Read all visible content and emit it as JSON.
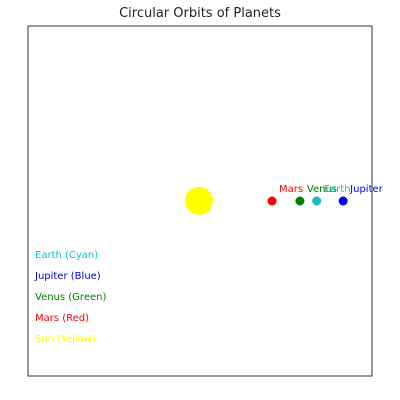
{
  "chart_data": {
    "type": "scatter",
    "title": "Circular Orbits of Planets",
    "xlabel": "",
    "ylabel": "",
    "axis_ticks": "hidden",
    "grid": false,
    "sun": {
      "label": "",
      "x": 0,
      "y": 0,
      "color": "#ffff00"
    },
    "planets": [
      {
        "name": "Mars",
        "x": 1.52,
        "y": 0,
        "color": "#ff0000"
      },
      {
        "name": "Venus",
        "x": 2.1,
        "y": 0,
        "color": "#008000"
      },
      {
        "name": "Earth",
        "x": 2.45,
        "y": 0,
        "color": "#17becf"
      },
      {
        "name": "Jupiter",
        "x": 3.0,
        "y": 0,
        "color": "#0000ff"
      }
    ],
    "legend": {
      "placement": "lower-left",
      "entries": [
        {
          "label": "Earth (Cyan)",
          "color": "#17becf"
        },
        {
          "label": "Jupiter (Blue)",
          "color": "#0000cd"
        },
        {
          "label": "Venus (Green)",
          "color": "#008000"
        },
        {
          "label": "Mars (Red)",
          "color": "#ff0000"
        },
        {
          "label": "Sun (Yellow)",
          "color": "#ffff00"
        }
      ]
    },
    "xlim": [
      -3,
      3
    ],
    "ylim": [
      -3,
      3
    ]
  }
}
